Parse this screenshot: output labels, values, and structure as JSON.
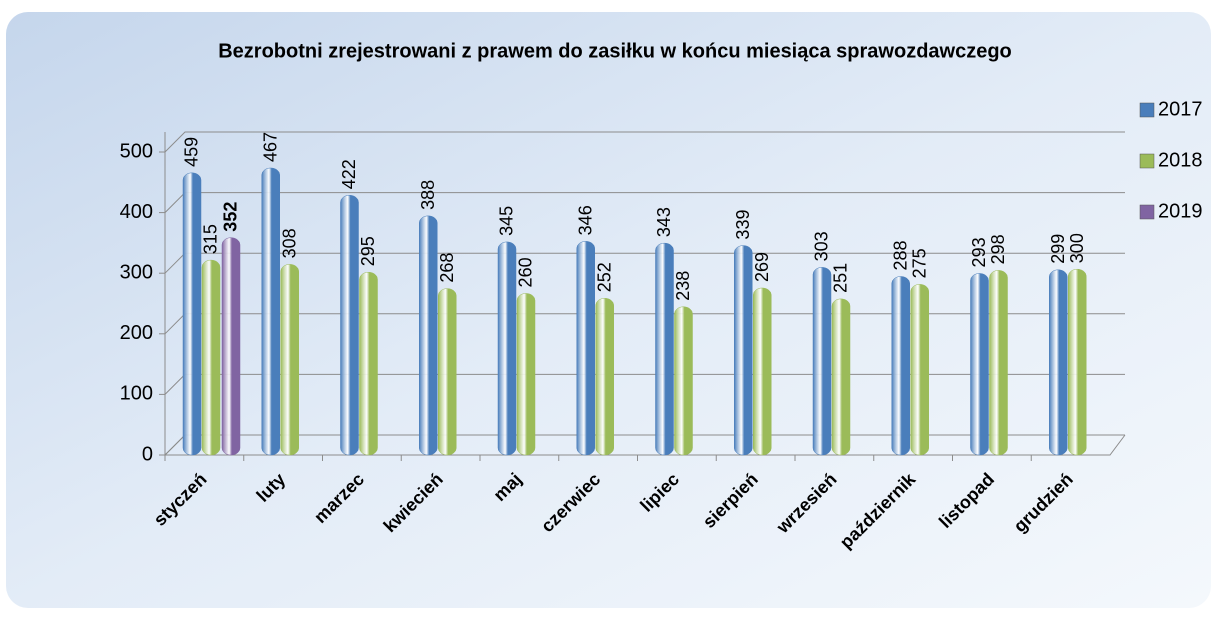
{
  "chart_data": {
    "type": "bar",
    "title": "Bezrobotni zrejestrowani z prawem do zasiłku w końcu miesiąca sprawozdawczego",
    "categories": [
      "styczeń",
      "luty",
      "marzec",
      "kwiecień",
      "maj",
      "czerwiec",
      "lipiec",
      "sierpień",
      "wrzesień",
      "październik",
      "listopad",
      "grudzień"
    ],
    "series": [
      {
        "name": "2017",
        "color": "#4a7ebb",
        "values": [
          459,
          467,
          422,
          388,
          345,
          346,
          343,
          339,
          303,
          288,
          293,
          299
        ]
      },
      {
        "name": "2018",
        "color": "#9bbb59",
        "values": [
          315,
          308,
          295,
          268,
          260,
          252,
          238,
          269,
          251,
          275,
          298,
          300
        ]
      },
      {
        "name": "2019",
        "color": "#8064a2",
        "values": [
          352,
          null,
          null,
          null,
          null,
          null,
          null,
          null,
          null,
          null,
          null,
          null
        ]
      }
    ],
    "ylim": [
      0,
      500
    ],
    "yticks": [
      0,
      100,
      200,
      300,
      400,
      500
    ],
    "grid": true,
    "legend": "right"
  }
}
